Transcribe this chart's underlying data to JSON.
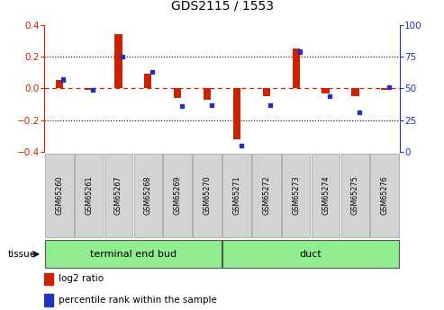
{
  "title": "GDS2115 / 1553",
  "samples": [
    "GSM65260",
    "GSM65261",
    "GSM65267",
    "GSM65268",
    "GSM65269",
    "GSM65270",
    "GSM65271",
    "GSM65272",
    "GSM65273",
    "GSM65274",
    "GSM65275",
    "GSM65276"
  ],
  "log2_ratio": [
    0.05,
    -0.01,
    0.34,
    0.09,
    -0.06,
    -0.07,
    -0.32,
    -0.05,
    0.25,
    -0.03,
    -0.05,
    -0.01
  ],
  "percentile_rank": [
    57,
    49,
    75,
    63,
    36,
    37,
    5,
    37,
    79,
    44,
    31,
    51
  ],
  "group1_indices": [
    0,
    1,
    2,
    3,
    4,
    5
  ],
  "group2_indices": [
    6,
    7,
    8,
    9,
    10,
    11
  ],
  "group1_label": "terminal end bud",
  "group2_label": "duct",
  "group_color": "#90EE90",
  "ylim_left": [
    -0.4,
    0.4
  ],
  "ylim_right": [
    0,
    100
  ],
  "yticks_left": [
    -0.4,
    -0.2,
    0.0,
    0.2,
    0.4
  ],
  "yticks_right": [
    0,
    25,
    50,
    75,
    100
  ],
  "bar_color_log2": "#CC2200",
  "bar_color_pct": "#2233BB",
  "dashed_line_color": "#CC2200",
  "sample_box_color": "#d3d3d3",
  "tissue_label": "tissue",
  "legend_log2": "log2 ratio",
  "legend_pct": "percentile rank within the sample",
  "log2_bar_width": 0.25,
  "pct_bar_width": 0.12,
  "pct_bar_height": 0.025
}
